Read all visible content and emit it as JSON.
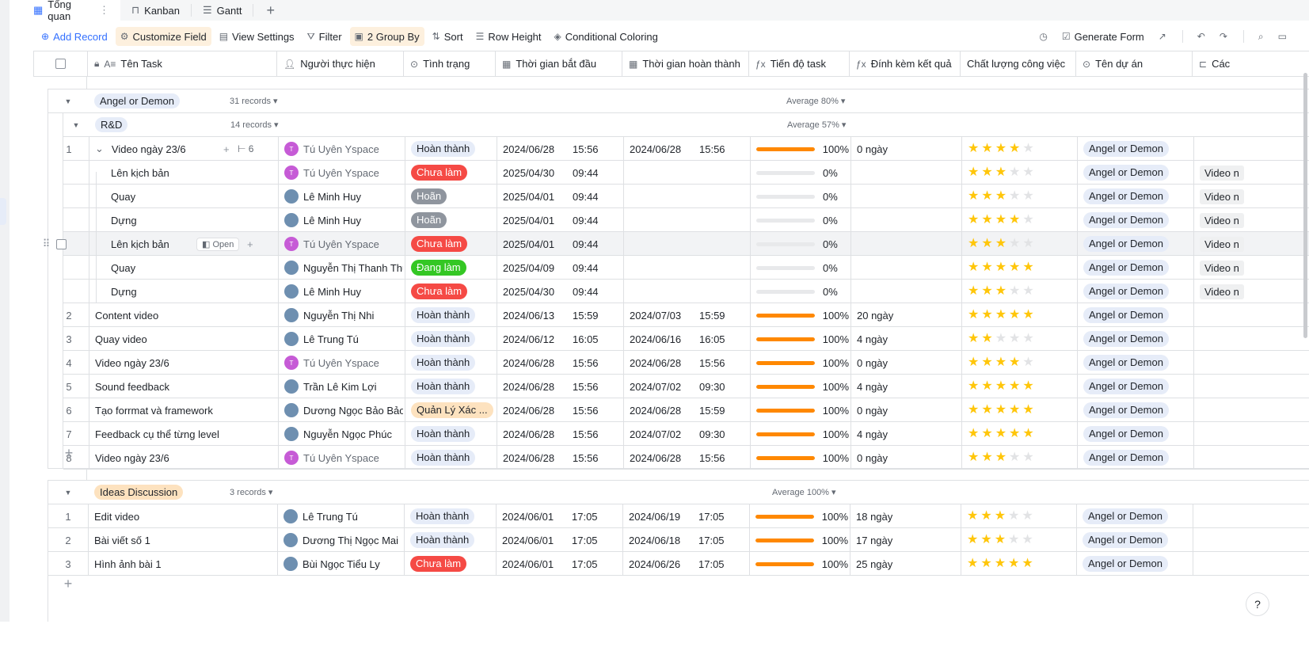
{
  "tabs": [
    {
      "label": "Tổng quan",
      "icon": "table-icon"
    },
    {
      "label": "Kanban",
      "icon": "kanban-icon"
    },
    {
      "label": "Gantt",
      "icon": "gantt-icon"
    }
  ],
  "tab_add": "+",
  "toolbar": {
    "add_record": "Add Record",
    "customize_field": "Customize Field",
    "view_settings": "View Settings",
    "filter": "Filter",
    "group_by": "2 Group By",
    "sort": "Sort",
    "row_height": "Row Height",
    "conditional_coloring": "Conditional Coloring",
    "generate_form": "Generate Form"
  },
  "columns": {
    "task": "Tên Task",
    "assignee": "Người thực hiện",
    "status": "Tình trạng",
    "start": "Thời gian bắt đầu",
    "end": "Thời gian hoàn thành",
    "progress": "Tiến độ task",
    "attach": "Đính kèm kết quả",
    "quality": "Chất lượng công việc",
    "project": "Tên dự án",
    "more": "Các n"
  },
  "colors": {
    "accent": "#3370ff",
    "progress": "#ff8800",
    "star": "#ffc60a",
    "todo": "#f54a45",
    "doing": "#34c724"
  },
  "group1": {
    "tag": "Angel or Demon",
    "count": "31 records",
    "avg": "Average 80%",
    "sub": {
      "tag": "R&D",
      "count": "14 records",
      "avg": "Average 57%",
      "parent": {
        "num": "1",
        "task": "Video ngày 23/6",
        "subcount": "6",
        "assignee": "Tú Uyên Yspace",
        "status": "Hoàn thành",
        "start_date": "2024/06/28",
        "start_time": "15:56",
        "end_date": "2024/06/28",
        "end_time": "15:56",
        "progress": "100%",
        "attach": "0 ngày",
        "stars": 4,
        "project": "Angel or Demon"
      },
      "children": [
        {
          "task": "Lên kịch bản",
          "assignee": "Tú Uyên Yspace",
          "av": "t",
          "status": "Chưa làm",
          "st": "todo",
          "start_date": "2025/04/30",
          "start_time": "09:44",
          "progress": "0%",
          "stars": 3,
          "project": "Angel or Demon",
          "more": "Video n"
        },
        {
          "task": "Quay",
          "assignee": "Lê Minh Huy",
          "av": "p",
          "status": "Hoãn",
          "st": "late",
          "start_date": "2025/04/01",
          "start_time": "09:44",
          "progress": "0%",
          "stars": 3,
          "project": "Angel or Demon",
          "more": "Video n"
        },
        {
          "task": "Dựng",
          "assignee": "Lê Minh Huy",
          "av": "p",
          "status": "Hoãn",
          "st": "late",
          "start_date": "2025/04/01",
          "start_time": "09:44",
          "progress": "0%",
          "stars": 4,
          "project": "Angel or Demon",
          "more": "Video n"
        },
        {
          "task": "Lên kịch bản",
          "assignee": "Tú Uyên Yspace",
          "av": "t",
          "status": "Chưa làm",
          "st": "todo",
          "start_date": "2025/04/01",
          "start_time": "09:44",
          "progress": "0%",
          "stars": 3,
          "project": "Angel or Demon",
          "more": "Video n"
        },
        {
          "task": "Quay",
          "assignee": "Nguyễn Thị Thanh Thư",
          "av": "p",
          "status": "Đang làm",
          "st": "doing",
          "start_date": "2025/04/09",
          "start_time": "09:44",
          "progress": "0%",
          "stars": 5,
          "project": "Angel or Demon",
          "more": "Video n"
        },
        {
          "task": "Dựng",
          "assignee": "Lê Minh Huy",
          "av": "p",
          "status": "Chưa làm",
          "st": "todo",
          "start_date": "2025/04/30",
          "start_time": "09:44",
          "progress": "0%",
          "stars": 3,
          "project": "Angel or Demon",
          "more": "Video n"
        }
      ],
      "open_label": "Open",
      "rows": [
        {
          "num": "2",
          "task": "Content video",
          "assignee": "Nguyễn Thị  Nhi",
          "av": "p",
          "status": "Hoàn thành",
          "st": "done",
          "start_date": "2024/06/13",
          "start_time": "15:59",
          "end_date": "2024/07/03",
          "end_time": "15:59",
          "progress": "100%",
          "attach": "20 ngày",
          "stars": 5,
          "project": "Angel or Demon"
        },
        {
          "num": "3",
          "task": "Quay video",
          "assignee": "Lê Trung Tú",
          "av": "p",
          "status": "Hoàn thành",
          "st": "done",
          "start_date": "2024/06/12",
          "start_time": "16:05",
          "end_date": "2024/06/16",
          "end_time": "16:05",
          "progress": "100%",
          "attach": "4 ngày",
          "stars": 2,
          "project": "Angel or Demon"
        },
        {
          "num": "4",
          "task": "Video ngày 23/6",
          "assignee": "Tú Uyên Yspace",
          "av": "t",
          "status": "Hoàn thành",
          "st": "done",
          "start_date": "2024/06/28",
          "start_time": "15:56",
          "end_date": "2024/06/28",
          "end_time": "15:56",
          "progress": "100%",
          "attach": "0 ngày",
          "stars": 4,
          "project": "Angel or Demon"
        },
        {
          "num": "5",
          "task": "Sound feedback",
          "assignee": "Trần Lê Kim Lợi",
          "av": "p",
          "status": "Hoàn thành",
          "st": "done",
          "start_date": "2024/06/28",
          "start_time": "15:56",
          "end_date": "2024/07/02",
          "end_time": "09:30",
          "progress": "100%",
          "attach": "4 ngày",
          "stars": 5,
          "project": "Angel or Demon"
        },
        {
          "num": "6",
          "task": "Tạo forrmat và framework",
          "assignee": "Dương Ngọc Bảo Bảo",
          "av": "p",
          "status": "Quản Lý Xác ...",
          "st": "mgmt",
          "start_date": "2024/06/28",
          "start_time": "15:56",
          "end_date": "2024/06/28",
          "end_time": "15:59",
          "progress": "100%",
          "attach": "0 ngày",
          "stars": 5,
          "project": "Angel or Demon"
        },
        {
          "num": "7",
          "task": "Feedback cụ thể từng level",
          "assignee": "Nguyễn Ngọc Phúc",
          "av": "p",
          "status": "Hoàn thành",
          "st": "done",
          "start_date": "2024/06/28",
          "start_time": "15:56",
          "end_date": "2024/07/02",
          "end_time": "09:30",
          "progress": "100%",
          "attach": "4 ngày",
          "stars": 5,
          "project": "Angel or Demon"
        },
        {
          "num": "8",
          "task": "Video ngày 23/6",
          "assignee": "Tú Uyên Yspace",
          "av": "t",
          "status": "Hoàn thành",
          "st": "done",
          "start_date": "2024/06/28",
          "start_time": "15:56",
          "end_date": "2024/06/28",
          "end_time": "15:56",
          "progress": "100%",
          "attach": "0 ngày",
          "stars": 3,
          "project": "Angel or Demon"
        }
      ]
    }
  },
  "group2": {
    "tag": "Ideas Discussion",
    "count": "3 records",
    "avg": "Average 100%",
    "rows": [
      {
        "num": "1",
        "task": "Edit video",
        "assignee": "Lê Trung Tú",
        "av": "p",
        "status": "Hoàn thành",
        "st": "done",
        "start_date": "2024/06/01",
        "start_time": "17:05",
        "end_date": "2024/06/19",
        "end_time": "17:05",
        "progress": "100%",
        "attach": "18 ngày",
        "stars": 3,
        "project": "Angel or Demon"
      },
      {
        "num": "2",
        "task": "Bài viết số 1",
        "assignee": "Dương Thị Ngọc Mai",
        "av": "p",
        "status": "Hoàn thành",
        "st": "done",
        "start_date": "2024/06/01",
        "start_time": "17:05",
        "end_date": "2024/06/18",
        "end_time": "17:05",
        "progress": "100%",
        "attach": "17 ngày",
        "stars": 3,
        "project": "Angel or Demon"
      },
      {
        "num": "3",
        "task": "Hình ảnh bài 1",
        "assignee": "Bùi Ngọc Tiểu Ly",
        "av": "p",
        "status": "Chưa làm",
        "st": "todo",
        "start_date": "2024/06/01",
        "start_time": "17:05",
        "end_date": "2024/06/26",
        "end_time": "17:05",
        "progress": "100%",
        "attach": "25 ngày",
        "stars": 5,
        "project": "Angel or Demon"
      }
    ]
  },
  "help": "?"
}
